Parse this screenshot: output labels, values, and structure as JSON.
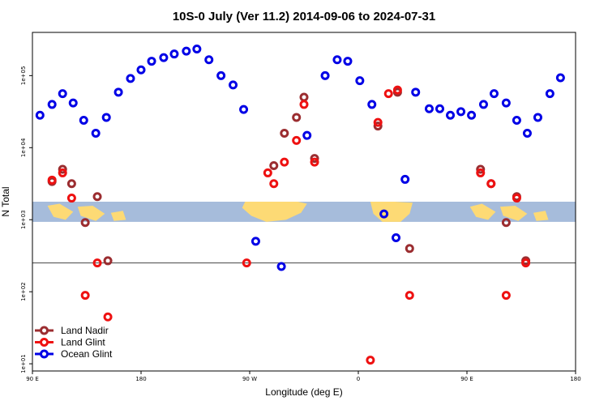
{
  "chart_data": {
    "type": "scatter",
    "title": "10S-0 July (Ver 11.2)   2014-09-06 to 2024-07-31",
    "xlabel": "Longitude (deg E)",
    "ylabel": "N Total",
    "y_scale": "log10",
    "xlim": [
      90,
      450
    ],
    "ylim_log10": [
      0.9,
      5.6
    ],
    "x_ticks": [
      {
        "value": 90,
        "label": "90 E"
      },
      {
        "value": 162,
        "label": "180"
      },
      {
        "value": 234,
        "label": "90 W"
      },
      {
        "value": 306,
        "label": "0"
      },
      {
        "value": 378,
        "label": "90 E"
      },
      {
        "value": 450,
        "label": "180"
      }
    ],
    "y_ticks": [
      {
        "value": 1,
        "label": "1e+01"
      },
      {
        "value": 2,
        "label": "1e+02"
      },
      {
        "value": 3,
        "label": "1e+03"
      },
      {
        "value": 4,
        "label": "1e+04"
      },
      {
        "value": 5,
        "label": "1e+05"
      }
    ],
    "reference_line_log10": 2.4,
    "map_band_log10": [
      2.97,
      3.25
    ],
    "map_colors": {
      "ocean": "#a6bcdb",
      "land": "#fdda75"
    },
    "legend": {
      "position": "bottom-left"
    },
    "series": [
      {
        "name": "Land Nadir",
        "color": "#9b2d30",
        "points": [
          [
            103,
            3.53
          ],
          [
            110,
            3.7
          ],
          [
            116,
            3.5
          ],
          [
            125,
            2.96
          ],
          [
            133,
            3.32
          ],
          [
            140,
            2.43
          ],
          [
            250,
            3.75
          ],
          [
            257,
            4.2
          ],
          [
            265,
            4.42
          ],
          [
            270,
            4.7
          ],
          [
            277,
            3.85
          ],
          [
            319,
            4.3
          ],
          [
            332,
            4.77
          ],
          [
            340,
            2.6
          ],
          [
            387,
            3.7
          ],
          [
            394,
            3.5
          ],
          [
            404,
            2.96
          ],
          [
            411,
            3.32
          ],
          [
            417,
            2.43
          ]
        ]
      },
      {
        "name": "Land Glint",
        "color": "#ee1111",
        "points": [
          [
            103,
            3.55
          ],
          [
            110,
            3.65
          ],
          [
            116,
            3.3
          ],
          [
            125,
            1.95
          ],
          [
            133,
            2.4
          ],
          [
            140,
            1.65
          ],
          [
            232,
            2.4
          ],
          [
            246,
            3.65
          ],
          [
            250,
            3.5
          ],
          [
            257,
            3.8
          ],
          [
            265,
            4.1
          ],
          [
            270,
            4.6
          ],
          [
            277,
            3.8
          ],
          [
            319,
            4.35
          ],
          [
            326,
            4.75
          ],
          [
            332,
            4.8
          ],
          [
            340,
            1.95
          ],
          [
            314,
            1.05
          ],
          [
            387,
            3.65
          ],
          [
            394,
            3.5
          ],
          [
            404,
            1.95
          ],
          [
            411,
            3.3
          ],
          [
            417,
            2.4
          ]
        ]
      },
      {
        "name": "Ocean Glint",
        "color": "#0000e6",
        "points": [
          [
            95,
            4.45
          ],
          [
            103,
            4.6
          ],
          [
            110,
            4.75
          ],
          [
            117,
            4.62
          ],
          [
            124,
            4.38
          ],
          [
            132,
            4.2
          ],
          [
            139,
            4.42
          ],
          [
            147,
            4.77
          ],
          [
            155,
            4.96
          ],
          [
            162,
            5.08
          ],
          [
            169,
            5.2
          ],
          [
            177,
            5.25
          ],
          [
            184,
            5.3
          ],
          [
            192,
            5.34
          ],
          [
            199,
            5.37
          ],
          [
            207,
            5.22
          ],
          [
            215,
            5.0
          ],
          [
            223,
            4.87
          ],
          [
            230,
            4.53
          ],
          [
            238,
            2.7
          ],
          [
            255,
            2.35
          ],
          [
            272,
            4.17
          ],
          [
            284,
            5.0
          ],
          [
            292,
            5.22
          ],
          [
            299,
            5.2
          ],
          [
            307,
            4.93
          ],
          [
            315,
            4.6
          ],
          [
            323,
            3.08
          ],
          [
            331,
            2.75
          ],
          [
            337,
            3.56
          ],
          [
            344,
            4.77
          ],
          [
            353,
            4.54
          ],
          [
            360,
            4.54
          ],
          [
            367,
            4.45
          ],
          [
            374,
            4.5
          ],
          [
            381,
            4.45
          ],
          [
            389,
            4.6
          ],
          [
            396,
            4.75
          ],
          [
            404,
            4.62
          ],
          [
            411,
            4.38
          ],
          [
            418,
            4.2
          ],
          [
            425,
            4.42
          ],
          [
            433,
            4.75
          ],
          [
            440,
            4.97
          ]
        ]
      }
    ]
  }
}
